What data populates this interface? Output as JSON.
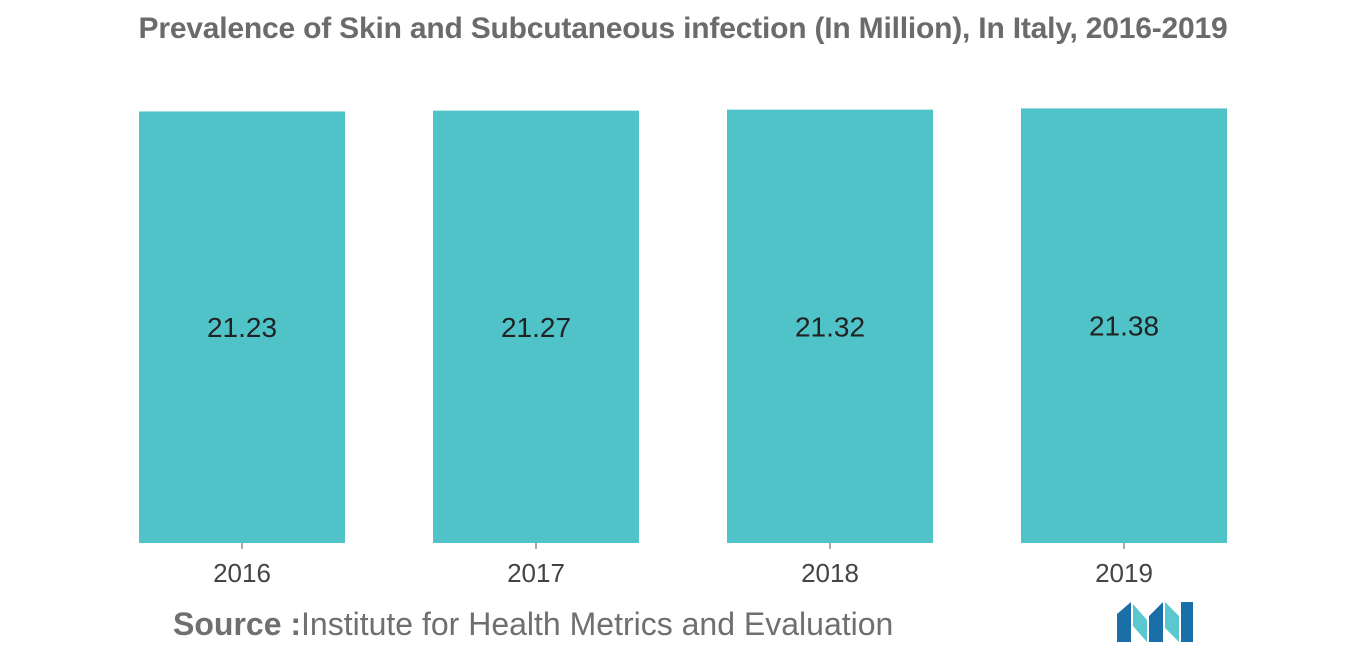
{
  "chart_data": {
    "type": "bar",
    "title": "Prevalence of Skin and Subcutaneous infection (In Million), In Italy, 2016-2019",
    "categories": [
      "2016",
      "2017",
      "2018",
      "2019"
    ],
    "values": [
      21.23,
      21.27,
      21.32,
      21.38
    ],
    "data_labels": [
      "21.23",
      "21.27",
      "21.32",
      "21.38"
    ],
    "xlabel": "",
    "ylabel": "",
    "ylim": [
      0,
      21.4
    ],
    "grid": false,
    "legend": "none",
    "bar_color": "#50c3c9"
  },
  "source": {
    "label": "Source :",
    "text": "Institute for Health Metrics and Evaluation"
  },
  "logo": {
    "icon": "mordor-intelligence-logo-icon",
    "colors": [
      "#1b6fa8",
      "#5bc7cf"
    ]
  }
}
